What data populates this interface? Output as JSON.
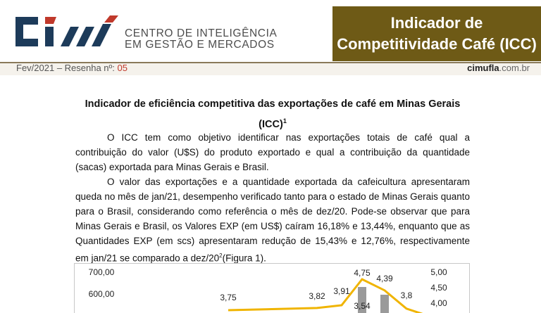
{
  "header": {
    "logo_text_line1": "CENTRO DE INTELIGÊNCIA",
    "logo_text_line2": "EM GESTÃO E MERCADOS",
    "title_line1": "Indicador de",
    "title_line2": "Competitividade Café (ICC)",
    "date_prefix": "Fev/2021 – Resenha nº: ",
    "date_number": "05",
    "site_bold": "cimufla",
    "site_rest": ".com.br"
  },
  "article": {
    "heading_line1": "Indicador de eficiência competitiva das exportações de café em Minas Gerais",
    "heading_line2": "(ICC)",
    "heading_sup": "1",
    "p1": "O ICC tem como objetivo identificar nas exportações totais de café qual a contribuição do valor (U$S) do produto exportado e qual a contribuição da quantidade (sacas) exportada para Minas Gerais e Brasil.",
    "p2_a": "O valor das exportações e a quantidade exportada da cafeicultura apresentaram queda no mês de jan/21, desempenho verificado tanto para o estado de Minas Gerais quanto para o Brasil, considerando como referência o mês de dez/20. Pode-se observar que para Minas Gerais e Brasil, os Valores EXP (em US$) caíram 16,18% e 13,44%, enquanto que as Quantidades EXP (em scs) apresentaram redução de 15,43% e 12,76%, respectivamente em jan/21 se comparado a dez/20",
    "p2_sup": "2",
    "p2_b": "(Figura 1)."
  },
  "chart_data": {
    "type": "bar",
    "left_axis_ticks": [
      "700,00",
      "600,00"
    ],
    "right_axis_ticks": [
      "5,00",
      "4,50",
      "4,00"
    ],
    "line_labels": [
      "3,75",
      "3,82",
      "3,91",
      "4,75",
      "4,39",
      "3,8"
    ],
    "bar_labels": [
      "3,54"
    ],
    "line_color": "#f0b400",
    "bar_color": "#9a9a9a"
  }
}
